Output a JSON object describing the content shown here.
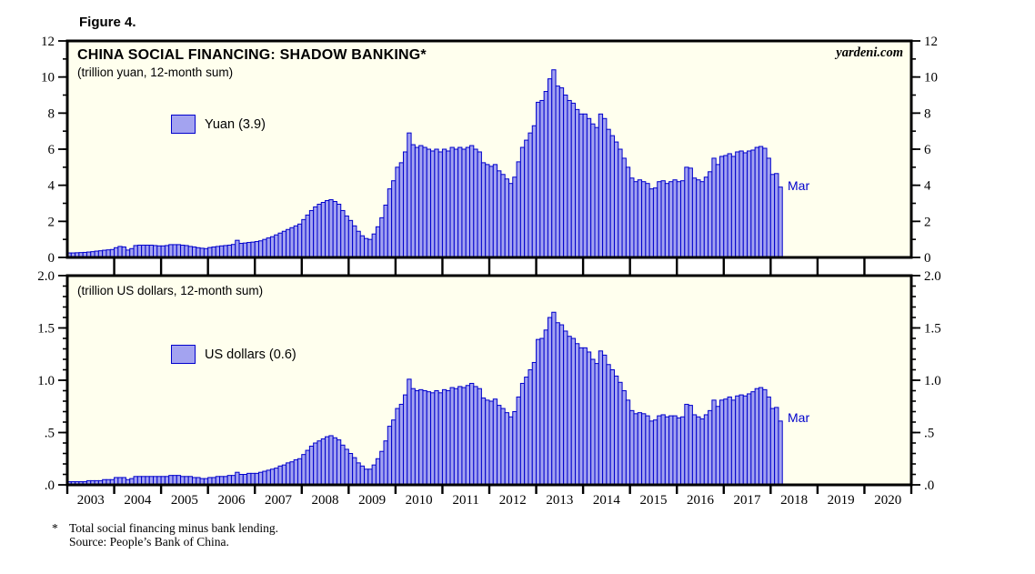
{
  "figure_label": "Figure 4.",
  "watermark": "yardeni.com",
  "footnote": {
    "marker": "*",
    "line1": "Total social financing minus bank lending.",
    "line2": "Source: People’s Bank of China."
  },
  "colors": {
    "background": "#FFFFEE",
    "bar_fill": "#A3A3F0",
    "bar_stroke": "#0000CC",
    "frame": "#000000",
    "annotation_blue": "#0000CC"
  },
  "x_axis": {
    "start_year": 2003,
    "end_year": 2020,
    "year_labels": [
      "2003",
      "2004",
      "2005",
      "2006",
      "2007",
      "2008",
      "2009",
      "2010",
      "2011",
      "2012",
      "2013",
      "2014",
      "2015",
      "2016",
      "2017",
      "2018",
      "2019",
      "2020"
    ]
  },
  "chart_data": [
    {
      "type": "bar",
      "panel": "top",
      "title": "CHINA SOCIAL FINANCING: SHADOW BANKING*",
      "subtitle": "(trillion yuan, 12-month sum)",
      "legend": "Yuan (3.9)",
      "latest_value": 3.9,
      "last_bar_label": "Mar",
      "start_month": "2003-01",
      "end_month": "2018-03",
      "ylim": [
        0,
        12
      ],
      "ytick_values": [
        0,
        2,
        4,
        6,
        8,
        10,
        12
      ],
      "ytick_labels": [
        "0",
        "2",
        "4",
        "6",
        "8",
        "10",
        "12"
      ],
      "ytick_minor_step": 1,
      "grid": false,
      "values": [
        0.25,
        0.25,
        0.26,
        0.27,
        0.28,
        0.3,
        0.32,
        0.35,
        0.37,
        0.4,
        0.42,
        0.44,
        0.54,
        0.61,
        0.58,
        0.41,
        0.49,
        0.66,
        0.68,
        0.68,
        0.68,
        0.68,
        0.66,
        0.64,
        0.64,
        0.66,
        0.71,
        0.71,
        0.71,
        0.68,
        0.66,
        0.61,
        0.58,
        0.54,
        0.51,
        0.49,
        0.55,
        0.58,
        0.61,
        0.64,
        0.66,
        0.68,
        0.72,
        0.95,
        0.78,
        0.8,
        0.83,
        0.85,
        0.88,
        0.92,
        1.0,
        1.08,
        1.15,
        1.25,
        1.35,
        1.45,
        1.55,
        1.65,
        1.75,
        1.85,
        2.1,
        2.35,
        2.6,
        2.8,
        2.95,
        3.05,
        3.15,
        3.2,
        3.1,
        2.95,
        2.6,
        2.3,
        2.05,
        1.75,
        1.45,
        1.2,
        1.05,
        1.0,
        1.3,
        1.7,
        2.2,
        2.9,
        3.8,
        4.25,
        5.0,
        5.25,
        5.85,
        6.9,
        6.25,
        6.1,
        6.2,
        6.1,
        6.0,
        5.9,
        6.0,
        5.85,
        6.0,
        5.9,
        6.1,
        6.0,
        6.1,
        6.0,
        6.1,
        6.2,
        6.0,
        5.85,
        5.25,
        5.15,
        5.05,
        5.15,
        4.8,
        4.6,
        4.35,
        4.1,
        4.45,
        5.3,
        6.1,
        6.5,
        6.9,
        7.3,
        8.6,
        8.7,
        9.2,
        9.9,
        10.4,
        9.5,
        9.4,
        9.0,
        8.7,
        8.55,
        8.2,
        7.95,
        7.95,
        7.7,
        7.4,
        7.2,
        7.95,
        7.7,
        7.1,
        6.75,
        6.4,
        6.0,
        5.5,
        5.0,
        4.4,
        4.2,
        4.3,
        4.2,
        4.1,
        3.8,
        3.85,
        4.2,
        4.25,
        4.1,
        4.2,
        4.3,
        4.2,
        4.25,
        5.0,
        4.95,
        4.4,
        4.3,
        4.2,
        4.45,
        4.75,
        5.5,
        5.15,
        5.6,
        5.65,
        5.75,
        5.6,
        5.85,
        5.9,
        5.8,
        5.9,
        5.95,
        6.1,
        6.15,
        6.05,
        5.5,
        4.6,
        4.65,
        3.9
      ]
    },
    {
      "type": "bar",
      "panel": "bottom",
      "title": "",
      "subtitle": "(trillion US dollars, 12-month sum)",
      "legend": "US dollars (0.6)",
      "latest_value": 0.6,
      "last_bar_label": "Mar",
      "start_month": "2003-01",
      "end_month": "2018-03",
      "ylim": [
        0,
        2
      ],
      "ytick_values": [
        0,
        0.5,
        1.0,
        1.5,
        2.0
      ],
      "ytick_labels": [
        ".0",
        ".5",
        "1.0",
        "1.5",
        "2.0"
      ],
      "ytick_minor_step": 0.1,
      "grid": false,
      "values": [
        0.03,
        0.03,
        0.03,
        0.03,
        0.03,
        0.04,
        0.04,
        0.04,
        0.04,
        0.05,
        0.05,
        0.05,
        0.07,
        0.07,
        0.07,
        0.05,
        0.06,
        0.08,
        0.08,
        0.08,
        0.08,
        0.08,
        0.08,
        0.08,
        0.08,
        0.08,
        0.09,
        0.09,
        0.09,
        0.08,
        0.08,
        0.08,
        0.07,
        0.07,
        0.06,
        0.06,
        0.07,
        0.07,
        0.08,
        0.08,
        0.08,
        0.09,
        0.09,
        0.12,
        0.1,
        0.1,
        0.11,
        0.11,
        0.11,
        0.12,
        0.13,
        0.14,
        0.15,
        0.16,
        0.18,
        0.19,
        0.21,
        0.22,
        0.24,
        0.25,
        0.29,
        0.33,
        0.37,
        0.4,
        0.42,
        0.44,
        0.46,
        0.47,
        0.45,
        0.43,
        0.38,
        0.34,
        0.3,
        0.26,
        0.21,
        0.18,
        0.15,
        0.15,
        0.19,
        0.25,
        0.32,
        0.42,
        0.56,
        0.62,
        0.73,
        0.77,
        0.86,
        1.01,
        0.92,
        0.9,
        0.91,
        0.9,
        0.89,
        0.88,
        0.9,
        0.88,
        0.91,
        0.9,
        0.93,
        0.92,
        0.94,
        0.93,
        0.95,
        0.97,
        0.94,
        0.92,
        0.83,
        0.81,
        0.8,
        0.82,
        0.76,
        0.73,
        0.69,
        0.65,
        0.7,
        0.84,
        0.97,
        1.03,
        1.1,
        1.17,
        1.39,
        1.4,
        1.48,
        1.6,
        1.65,
        1.55,
        1.53,
        1.47,
        1.42,
        1.4,
        1.35,
        1.31,
        1.31,
        1.27,
        1.2,
        1.16,
        1.28,
        1.24,
        1.15,
        1.1,
        1.04,
        0.98,
        0.9,
        0.81,
        0.71,
        0.68,
        0.69,
        0.68,
        0.66,
        0.61,
        0.62,
        0.66,
        0.67,
        0.65,
        0.66,
        0.66,
        0.64,
        0.65,
        0.77,
        0.76,
        0.67,
        0.65,
        0.63,
        0.67,
        0.71,
        0.81,
        0.75,
        0.81,
        0.82,
        0.84,
        0.81,
        0.85,
        0.86,
        0.85,
        0.87,
        0.89,
        0.92,
        0.93,
        0.91,
        0.84,
        0.73,
        0.74,
        0.61
      ]
    }
  ]
}
